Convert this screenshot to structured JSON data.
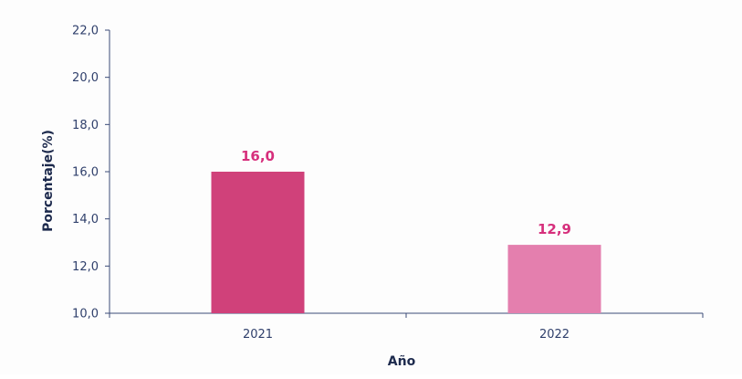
{
  "chart_data": {
    "type": "bar",
    "title": "",
    "xlabel": "Año",
    "ylabel": "Porcentaje(%)",
    "categories": [
      "2021",
      "2022"
    ],
    "values": [
      16.0,
      12.9
    ],
    "value_labels": [
      "16,0",
      "12,9"
    ],
    "ylim": [
      10,
      22
    ],
    "y_ticks": [
      10,
      12,
      14,
      16,
      18,
      20,
      22
    ],
    "y_tick_labels": [
      "10,0",
      "12,0",
      "14,0",
      "16,0",
      "18,0",
      "20,0",
      "22,0"
    ],
    "grid": false,
    "legend": "none",
    "colors": {
      "bars": [
        "#d0417a",
        "#e47fae"
      ],
      "data_label": "#d62f7c",
      "axis": "#3a4a78",
      "text": "#2f3f6b"
    }
  }
}
